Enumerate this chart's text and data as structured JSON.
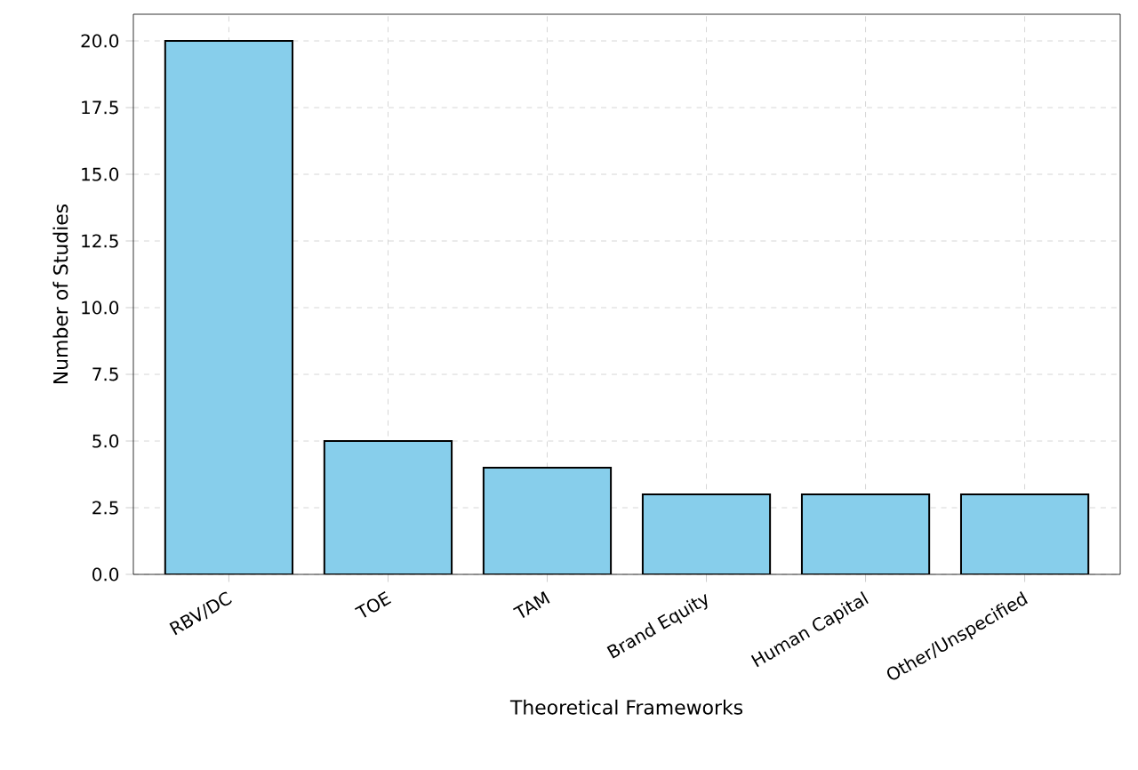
{
  "chart_data": {
    "type": "bar",
    "xlabel": "Theoretical Frameworks",
    "ylabel": "Number of Studies",
    "categories": [
      "RBV/DC",
      "TOE",
      "TAM",
      "Brand Equity",
      "Human Capital",
      "Other/Unspecified"
    ],
    "values": [
      20,
      5,
      4,
      3,
      3,
      3
    ],
    "color": "#87ceeb",
    "ylim": [
      0,
      21
    ],
    "yticks": [
      {
        "value": 0,
        "label": "0.0"
      },
      2.5,
      {
        "value": 5,
        "label": "5.0"
      },
      7.5,
      {
        "value": 10,
        "label": "10.0"
      },
      12.5,
      {
        "value": 15,
        "label": "15.0"
      },
      17.5,
      {
        "value": 20,
        "label": "20.0"
      }
    ],
    "grid": true
  }
}
